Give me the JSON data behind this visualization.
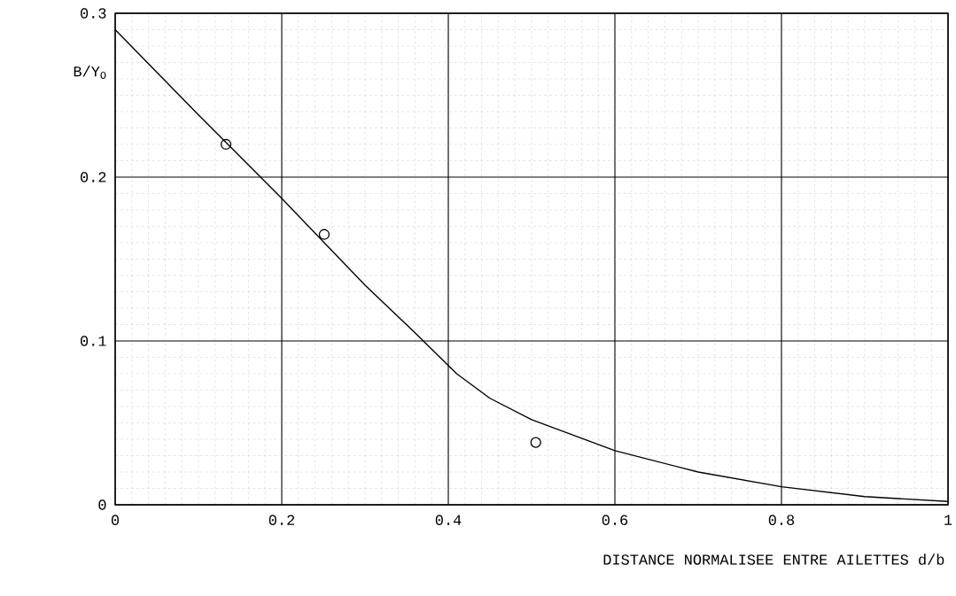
{
  "chart_data": {
    "type": "line",
    "xlabel": "DISTANCE NORMALISEE ENTRE AILETTES d/b",
    "ylabel": "B/Y$_{O}$",
    "xlim": [
      0,
      1
    ],
    "ylim": [
      0,
      0.3
    ],
    "xticks": [
      0,
      0.2,
      0.4,
      0.6,
      0.8,
      1
    ],
    "yticks": [
      0,
      0.1,
      0.2,
      0.3
    ],
    "grid": true,
    "series": [
      {
        "color": "#000000",
        "marker": "none",
        "x": [
          0,
          0.1,
          0.2,
          0.3,
          0.36,
          0.41,
          0.45,
          0.5,
          0.6,
          0.7,
          0.8,
          0.9,
          1.0
        ],
        "values": [
          0.29,
          0.238,
          0.187,
          0.134,
          0.105,
          0.08,
          0.065,
          0.052,
          0.033,
          0.02,
          0.011,
          0.005,
          0.002
        ]
      },
      {
        "type": "scatter",
        "color": "#000000",
        "marker": "circle",
        "x": [
          0.133,
          0.251,
          0.505
        ],
        "values": [
          0.22,
          0.165,
          0.038
        ]
      }
    ]
  }
}
